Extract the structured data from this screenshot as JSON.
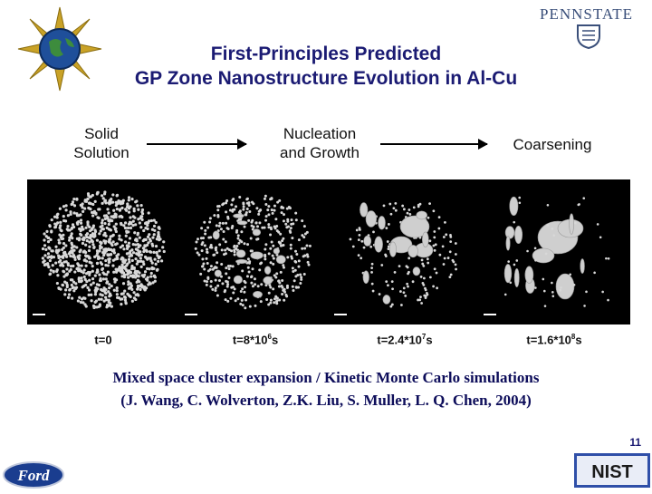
{
  "header": {
    "title_line1": "First-Principles Predicted",
    "title_line2": "GP Zone Nanostructure Evolution in Al-Cu",
    "psu_logo_text": "PENNSTATE",
    "left_logo_icon": "doe-globe-seal-icon",
    "right_logo_icon": "penn-state-shield-icon"
  },
  "stages": {
    "solid": [
      "Solid",
      "Solution"
    ],
    "nucleation": [
      "Nucleation",
      "and Growth"
    ],
    "coarsening": "Coarsening"
  },
  "times": [
    {
      "base": "t=0",
      "exp": "",
      "unit": ""
    },
    {
      "base": "t=8*10",
      "exp": "6",
      "unit": "s"
    },
    {
      "base": "t=2.4*10",
      "exp": "7",
      "unit": "s"
    },
    {
      "base": "t=1.6*10",
      "exp": "8",
      "unit": "s"
    }
  ],
  "caption": {
    "line1": "Mixed space cluster expansion / Kinetic Monte Carlo simulations",
    "line2": "(J. Wang, C. Wolverton, Z.K. Liu, S. Muller, L. Q. Chen, 2004)"
  },
  "page_number": "11",
  "footer": {
    "ford_logo_text": "Ford",
    "nist_logo_text": "NIST"
  },
  "colors": {
    "title": "#1b1b73",
    "caption": "#0d0d5a",
    "panel_bg": "#000000",
    "particle": "#d8d8d8"
  }
}
